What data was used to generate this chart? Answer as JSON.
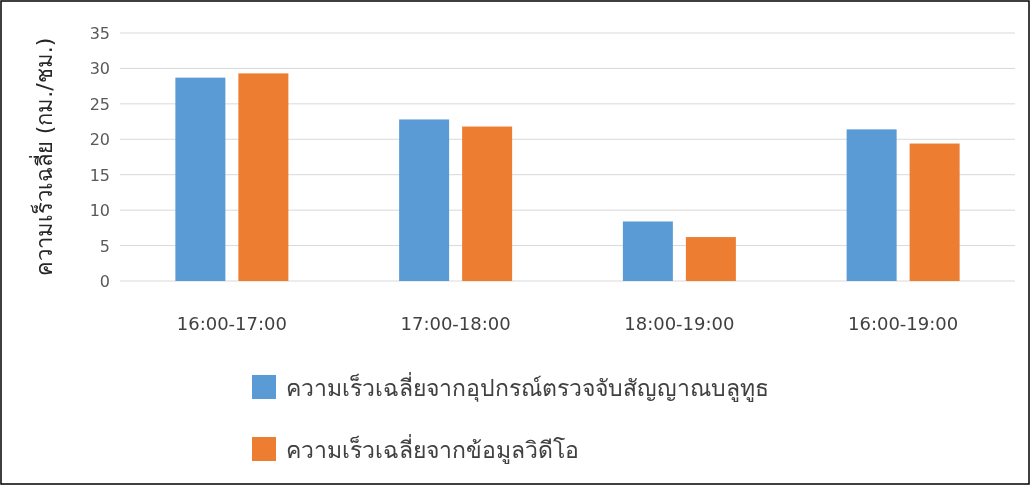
{
  "chart_data": {
    "type": "bar",
    "ylabel": "ความเร็วเฉลี่ย (กม./ชม.)",
    "categories": [
      "16:00-17:00",
      "17:00-18:00",
      "18:00-19:00",
      "16:00-19:00"
    ],
    "series": [
      {
        "name": "ความเร็วเฉลี่ยจากอุปกรณ์ตรวจจับสัญญาณบลูทูธ",
        "color": "#5b9bd5",
        "values": [
          28.7,
          22.8,
          8.4,
          21.4
        ]
      },
      {
        "name": "ความเร็วเฉลี่ยจากข้อมูลวิดีโอ",
        "color": "#ed7d31",
        "values": [
          29.3,
          21.8,
          6.2,
          19.4
        ]
      }
    ],
    "ylim": [
      0,
      35
    ],
    "yticks": [
      0,
      5,
      10,
      15,
      20,
      25,
      30,
      35
    ],
    "grid": "y",
    "legend": "bottom"
  }
}
